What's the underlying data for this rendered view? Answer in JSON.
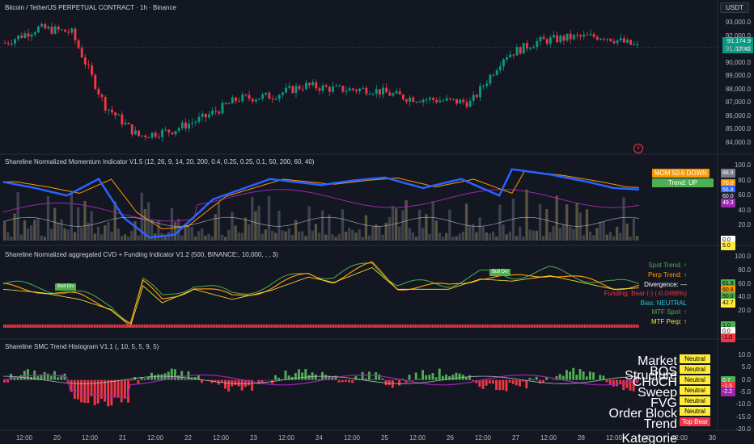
{
  "header": {
    "title": "Bitcoin / TetherUS PERPETUAL CONTRACT · 1h · Binance",
    "currency": "USDT",
    "last_price": "91,174.9",
    "countdown": "17:42"
  },
  "price_axis": [
    "93,000.0",
    "92,000.0",
    "91,000.0",
    "90,000.0",
    "89,000.0",
    "88,000.0",
    "87,000.0",
    "86,000.0",
    "85,000.0",
    "84,000.0"
  ],
  "x_axis": [
    "12:00",
    "20",
    "12:00",
    "21",
    "12:00",
    "22",
    "12:00",
    "23",
    "12:00",
    "24",
    "12:00",
    "25",
    "12:00",
    "26",
    "12:00",
    "27",
    "12:00",
    "28",
    "12:00",
    "29",
    "12:00",
    "30"
  ],
  "momentum": {
    "title": "Shareline Normalized Momentum Indicator V1.5 (12, 26, 9, 14, 20, 200, 0.4, 0.25, 0.25, 0.1, 50, 200, 60, 40)",
    "axis": [
      "100.0",
      "80.0",
      "60.0",
      "40.0",
      "20.0"
    ],
    "badge_mom": "MOM 50.6 DOWN",
    "badge_trend": "Trend: UP",
    "values": [
      "88.9",
      "70.0",
      "66.8",
      "60.0",
      "49.3",
      "0.0",
      "5.0"
    ]
  },
  "cvd": {
    "title": "Shareline Normalized aggregated CVD + Funding Indicator V1.2 (500, BINANCE:, 10,000, , , 3)",
    "axis": [
      "100.0",
      "80.0",
      "60.0",
      "40.0",
      "20.0"
    ],
    "panel": {
      "spot_trend": "Spot Trend: ↑",
      "perp_trend": "Perp Trend: ↑",
      "divergence": "Divergence: —",
      "funding": "Funding: Bear (-) (-0.0466%)",
      "bias": "Bias: NEUTRAL",
      "mtf_spot": "MTF Spot: ↑",
      "mtf_perp": "MTF Perp: ↑"
    },
    "values": [
      "61.9",
      "60.8",
      "50.0",
      "42.7",
      "1.0",
      "0.0",
      "-1.0"
    ],
    "tag1": "Bull Div",
    "tag2": "Bull Div"
  },
  "smc": {
    "title": "Shareline SMC Trend Histogram V1.1 (, 10, 5, 5, 9, 5)",
    "axis": [
      "10.0",
      "5.0",
      "0.0",
      "-5.0",
      "-10.0",
      "-15.0",
      "-20.0"
    ],
    "rows": [
      {
        "label": "Market Structure",
        "value": "Neutral"
      },
      {
        "label": "BOS",
        "value": "Neutral"
      },
      {
        "label": "CHoCH",
        "value": "Neutral"
      },
      {
        "label": "Sweep",
        "value": "Neutral"
      },
      {
        "label": "FVG",
        "value": "Neutral"
      },
      {
        "label": "Order Block",
        "value": "Neutral"
      },
      {
        "label": "Trend Kategorie",
        "value": "Top Bear"
      }
    ],
    "values": [
      "0.7",
      "-1.5",
      "-2.2"
    ]
  },
  "chart_data": {
    "type": "line",
    "title": "Bitcoin / TetherUS PERPETUAL CONTRACT · 1h · Binance",
    "x": [
      "19 12:00",
      "20",
      "20 12:00",
      "21",
      "21 12:00",
      "22",
      "22 12:00",
      "23",
      "23 12:00",
      "24",
      "24 12:00",
      "25",
      "25 12:00",
      "26",
      "26 12:00",
      "27",
      "27 12:00",
      "28",
      "28 12:00",
      "29"
    ],
    "series": [
      {
        "values": [
          91500,
          92600,
          92300,
          86800,
          84500,
          84900,
          85900,
          87300,
          87500,
          88300,
          88000,
          88000,
          87400,
          87200,
          87000,
          90500,
          91600,
          91900,
          92000,
          91200
        ]
      }
    ],
    "ylim": [
      83500,
      93500
    ],
    "colors": {
      "up": "#089981",
      "down": "#f23645",
      "bg": "#131722"
    }
  }
}
